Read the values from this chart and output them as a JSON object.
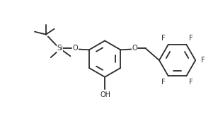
{
  "bg_color": "#ffffff",
  "line_color": "#2a2a2a",
  "line_width": 1.3,
  "font_size": 7.0,
  "dpi": 100,
  "figw": 3.08,
  "figh": 1.85,
  "xlim": [
    0,
    308
  ],
  "ylim": [
    0,
    185
  ]
}
